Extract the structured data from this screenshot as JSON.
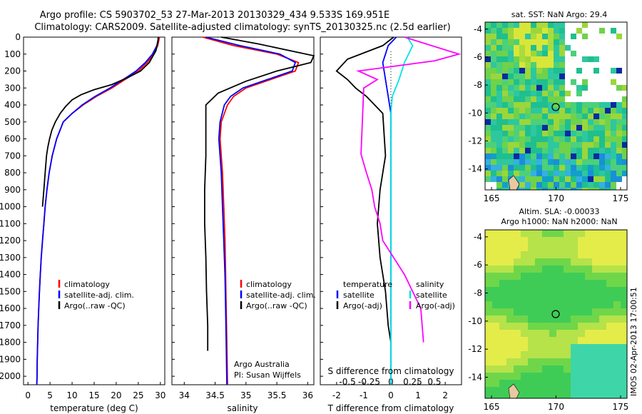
{
  "title_line1": "Argo profile: CS 5903702_53 27-Mar-2013 20130329_434 9.533S 169.951E",
  "title_line2": "Climatology: CARS2009. Satellite-adjusted climatology: synTS_20130325.nc (2.5d earlier)",
  "colors": {
    "climatology": "#ff0000",
    "satellite": "#0000ff",
    "argo": "#000000",
    "sat_s": "#00e5e5",
    "argo_s": "#ff00ff"
  },
  "panel1": {
    "xlabel": "temperature (deg C)",
    "legend": [
      "climatology",
      "satellite-adj. clim.",
      "Argo(..raw -QC)"
    ]
  },
  "panel2": {
    "xlabel": "salinity",
    "legend": [
      "climatology",
      "satellite-adj. clim.",
      "Argo(..raw -QC)"
    ],
    "credit1": "Argo Australia",
    "credit2": "PI: Susan Wijffels"
  },
  "panel3": {
    "xlabel": "T difference from climatology",
    "top_label": "S difference from climatology",
    "legend_t_title": "temperature",
    "legend_s_title": "salinity",
    "legend_t": [
      "satellite",
      "Argo(-adj)"
    ],
    "legend_s": [
      "satellite",
      "Argo(-adj)"
    ]
  },
  "map1": {
    "title": "sat. SST: NaN Argo: 29.4"
  },
  "map2": {
    "title1": "Altim. SLA: -0.00033",
    "title2": "Argo h1000: NaN h2000: NaN"
  },
  "stamp": "IMOS 02-Apr-2013 17:00:51",
  "chart_data": [
    {
      "type": "line",
      "xlabel": "temperature (deg C)",
      "ylabel": "",
      "xlim": [
        -1,
        31
      ],
      "ylim": [
        2050,
        0
      ],
      "xticks": [
        0,
        5,
        10,
        15,
        20,
        25,
        30
      ],
      "yticks": [
        0,
        100,
        200,
        300,
        400,
        500,
        600,
        700,
        800,
        900,
        1000,
        1100,
        1200,
        1300,
        1400,
        1500,
        1600,
        1700,
        1800,
        1900,
        2000
      ],
      "series": [
        {
          "name": "climatology",
          "color": "#ff0000",
          "x": [
            29.8,
            29.4,
            28.5,
            27,
            25,
            22,
            19,
            15.5,
            12.5,
            10,
            8,
            6.5,
            5.5,
            4.8,
            4.3,
            3.9,
            3.6,
            3.3,
            3.0,
            2.8,
            2.6,
            2.45,
            2.3,
            2.2,
            2.1,
            2.05,
            2.0
          ],
          "y": [
            0,
            50,
            100,
            150,
            200,
            250,
            300,
            350,
            400,
            450,
            500,
            600,
            700,
            800,
            900,
            1000,
            1100,
            1200,
            1300,
            1400,
            1500,
            1600,
            1700,
            1800,
            1900,
            2000,
            2050
          ]
        },
        {
          "name": "satellite-adj. clim.",
          "color": "#0000ff",
          "x": [
            29.6,
            29.2,
            28.2,
            26.6,
            24.5,
            21.6,
            18.6,
            15.2,
            12.3,
            10,
            8,
            6.5,
            5.5,
            4.8,
            4.3,
            3.9,
            3.6,
            3.3,
            3.0,
            2.8,
            2.6,
            2.45,
            2.3,
            2.2,
            2.1,
            2.05,
            2.0
          ],
          "y": [
            0,
            50,
            100,
            150,
            200,
            250,
            300,
            350,
            400,
            450,
            500,
            600,
            700,
            800,
            900,
            1000,
            1100,
            1200,
            1300,
            1400,
            1500,
            1600,
            1700,
            1800,
            1900,
            2000,
            2050
          ]
        },
        {
          "name": "Argo(..raw -QC)",
          "color": "#000000",
          "x": [
            29.5,
            29.5,
            29.0,
            27.5,
            25.5,
            22.5,
            19,
            15,
            12,
            10,
            8.5,
            7.3,
            6.2,
            5.4,
            4.9,
            4.5,
            4.2,
            3.9,
            3.6,
            3.3
          ],
          "y": [
            0,
            20,
            80,
            150,
            200,
            240,
            280,
            310,
            340,
            370,
            410,
            450,
            500,
            550,
            600,
            650,
            700,
            800,
            900,
            1000
          ]
        }
      ]
    },
    {
      "type": "line",
      "xlabel": "salinity",
      "xlim": [
        33.8,
        36.1
      ],
      "ylim": [
        2050,
        0
      ],
      "xticks": [
        34,
        34.5,
        35,
        35.5,
        36
      ],
      "series": [
        {
          "name": "climatology",
          "color": "#ff0000",
          "x": [
            34.3,
            34.8,
            35.5,
            35.85,
            35.8,
            35.4,
            35.0,
            34.8,
            34.7,
            34.6,
            34.58,
            34.6,
            34.62,
            34.64,
            34.66,
            34.67,
            34.68,
            34.69,
            34.7
          ],
          "y": [
            0,
            50,
            100,
            150,
            200,
            250,
            300,
            350,
            400,
            500,
            600,
            700,
            800,
            1000,
            1200,
            1400,
            1600,
            1800,
            2050
          ]
        },
        {
          "name": "satellite-adj. clim.",
          "color": "#0000ff",
          "x": [
            34.35,
            34.9,
            35.55,
            35.8,
            35.75,
            35.35,
            34.95,
            34.75,
            34.65,
            34.58,
            34.56,
            34.58,
            34.6,
            34.62,
            34.64,
            34.66,
            34.67,
            34.68,
            34.69
          ],
          "y": [
            0,
            50,
            100,
            150,
            200,
            250,
            300,
            350,
            400,
            500,
            600,
            700,
            800,
            1000,
            1200,
            1400,
            1600,
            1800,
            2050
          ]
        },
        {
          "name": "Argo(..raw -QC)",
          "color": "#000000",
          "x": [
            34.6,
            35.2,
            36.1,
            36.05,
            35.5,
            35.0,
            34.55,
            34.35,
            34.35,
            34.35,
            34.33,
            34.33,
            34.35,
            34.36,
            34.38,
            34.38
          ],
          "y": [
            0,
            40,
            110,
            150,
            200,
            260,
            330,
            400,
            600,
            700,
            900,
            1100,
            1300,
            1500,
            1700,
            1850
          ]
        }
      ]
    },
    {
      "type": "line",
      "xlabel": "T difference from climatology",
      "top_label": "S difference from climatology",
      "xlim_T": [
        -2.6,
        2.6
      ],
      "xticks_T": [
        -2,
        -1,
        0,
        1,
        2
      ],
      "xticks_S": [
        -0.5,
        -0.25,
        0,
        0.25,
        0.5
      ],
      "ylim": [
        2050,
        0
      ],
      "series": [
        {
          "name": "temperature satellite",
          "color": "#0000ff",
          "x": [
            0.2,
            -0.1,
            -0.2,
            -0.3,
            -0.2,
            -0.1,
            0,
            0,
            0,
            0,
            0,
            0,
            0
          ],
          "y": [
            0,
            50,
            100,
            150,
            250,
            350,
            450,
            600,
            800,
            1000,
            1400,
            1800,
            2050
          ]
        },
        {
          "name": "temperature Argo(-adj)",
          "color": "#000000",
          "x": [
            0.1,
            -0.3,
            -1.6,
            -2.0,
            -1.6,
            -1.3,
            -0.9,
            -0.6,
            -0.3,
            -0.2,
            -0.4,
            -0.5,
            -0.4,
            -0.2,
            -0.1,
            0
          ],
          "y": [
            0,
            50,
            130,
            200,
            250,
            300,
            350,
            400,
            450,
            700,
            900,
            1100,
            1300,
            1500,
            1700,
            1800
          ]
        },
        {
          "name": "salinity satellite",
          "color": "#00e5e5",
          "x": [
            0.6,
            0.8,
            0.5,
            0.3,
            0.05,
            0,
            0,
            0,
            0,
            0,
            0,
            0
          ],
          "y": [
            0,
            50,
            150,
            250,
            350,
            450,
            600,
            800,
            1000,
            1400,
            1800,
            2050
          ]
        },
        {
          "name": "salinity Argo(-adj)",
          "color": "#ff00ff",
          "x": [
            0.5,
            2.5,
            1.6,
            -1.2,
            -0.5,
            -1.0,
            -1.1,
            -0.9,
            -0.7,
            -0.6,
            -0.4,
            -0.3,
            0.5,
            1.1,
            1.2
          ],
          "y": [
            0,
            100,
            140,
            200,
            250,
            300,
            690,
            800,
            900,
            1000,
            1100,
            1200,
            1400,
            1600,
            1800
          ]
        }
      ]
    },
    {
      "type": "heatmap",
      "title": "sat. SST: NaN Argo: 29.4",
      "xticks": [
        165,
        170,
        175
      ],
      "yticks": [
        -4,
        -6,
        -8,
        -10,
        -12,
        -14
      ],
      "argo_position": [
        169.951,
        -9.533
      ]
    },
    {
      "type": "heatmap",
      "title": "Altim. SLA: -0.00033",
      "subtitle": "Argo h1000: NaN h2000: NaN",
      "xticks": [
        165,
        170,
        175
      ],
      "yticks": [
        -4,
        -6,
        -8,
        -10,
        -12,
        -14
      ],
      "argo_position": [
        169.951,
        -9.533
      ]
    }
  ]
}
